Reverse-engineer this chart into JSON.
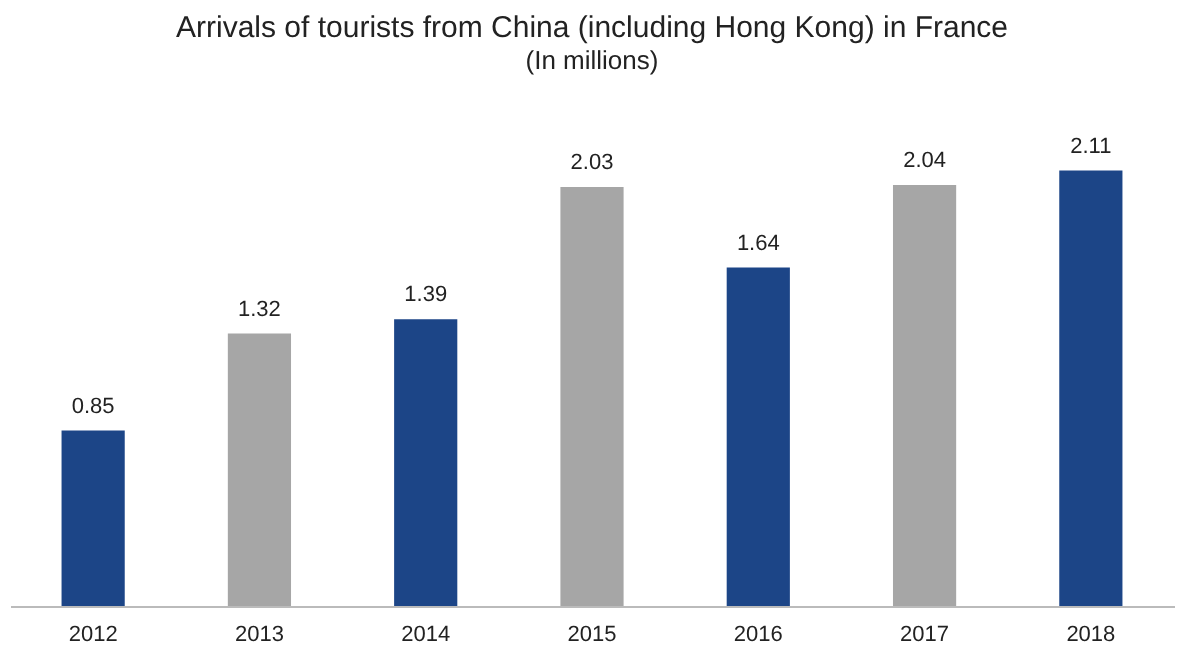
{
  "chart_data": {
    "type": "bar",
    "title": "Arrivals of tourists from China (including Hong Kong) in France",
    "subtitle": "(In millions)",
    "categories": [
      "2012",
      "2013",
      "2014",
      "2015",
      "2016",
      "2017",
      "2018"
    ],
    "values": [
      0.85,
      1.32,
      1.39,
      2.03,
      1.64,
      2.04,
      2.11
    ],
    "colors": [
      "#1c4587",
      "#a6a6a6",
      "#1c4587",
      "#a6a6a6",
      "#1c4587",
      "#a6a6a6",
      "#1c4587"
    ],
    "data_labels": true
  }
}
